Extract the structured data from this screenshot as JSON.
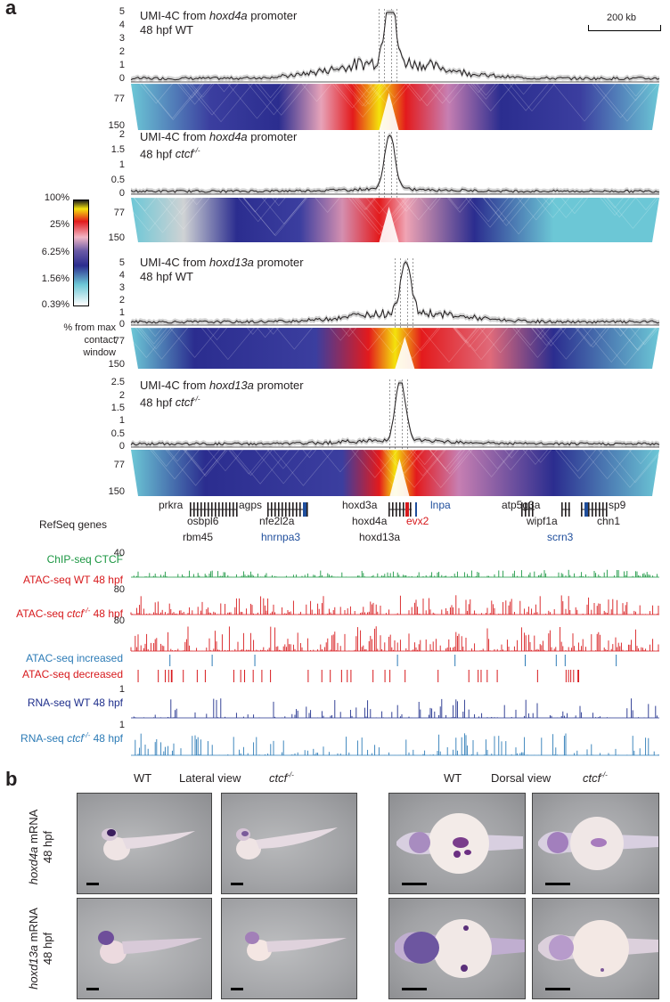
{
  "panel_a": {
    "letter": "a",
    "scale_bar": "200 kb",
    "contact_legend": {
      "stops": [
        "100%",
        "25%",
        "6.25%",
        "1.56%",
        "0.39%"
      ],
      "caption": [
        "% from max",
        "contact",
        "window"
      ]
    },
    "umi_tracks": [
      {
        "title_prefix": "UMI-4C from ",
        "gene": "hoxd4a",
        "title_suffix": " promoter",
        "condition": "48 hpf WT",
        "yticks": [
          "5",
          "4",
          "3",
          "2",
          "1",
          "0"
        ],
        "matrix_ticks": [
          "77",
          "150"
        ]
      },
      {
        "title_prefix": "UMI-4C from ",
        "gene": "hoxd4a",
        "title_suffix": " promoter",
        "condition": "48 hpf ctcf-/-",
        "yticks": [
          "2",
          "1.5",
          "1",
          "0.5",
          "0"
        ],
        "matrix_ticks": [
          "77",
          "150"
        ]
      },
      {
        "title_prefix": "UMI-4C from ",
        "gene": "hoxd13a",
        "title_suffix": " promoter",
        "condition": "48 hpf WT",
        "yticks": [
          "5",
          "4",
          "3",
          "2",
          "1",
          "0"
        ],
        "matrix_ticks": [
          "77",
          "150"
        ]
      },
      {
        "title_prefix": "UMI-4C from ",
        "gene": "hoxd13a",
        "title_suffix": " promoter",
        "condition": "48 hpf ctcf-/-",
        "yticks": [
          "2.5",
          "2",
          "1.5",
          "1",
          "0.5",
          "0"
        ],
        "matrix_ticks": [
          "77",
          "150"
        ]
      }
    ],
    "refseq": {
      "label": "RefSeq genes",
      "genes": [
        {
          "name": "prkra",
          "color": "#231f20"
        },
        {
          "name": "agps",
          "color": "#231f20"
        },
        {
          "name": "hoxd3a",
          "color": "#231f20"
        },
        {
          "name": "lnpa",
          "color": "#1f4e9c"
        },
        {
          "name": "atp5g3a",
          "color": "#231f20"
        },
        {
          "name": "sp9",
          "color": "#231f20"
        },
        {
          "name": "osbpl6",
          "color": "#231f20"
        },
        {
          "name": "nfe2l2a",
          "color": "#231f20"
        },
        {
          "name": "hoxd4a",
          "color": "#231f20"
        },
        {
          "name": "evx2",
          "color": "#d7191c"
        },
        {
          "name": "wipf1a",
          "color": "#231f20"
        },
        {
          "name": "chn1",
          "color": "#231f20"
        },
        {
          "name": "rbm45",
          "color": "#231f20"
        },
        {
          "name": "hnrnpa3",
          "color": "#1f4e9c"
        },
        {
          "name": "hoxd13a",
          "color": "#231f20"
        },
        {
          "name": "scrn3",
          "color": "#1f4e9c"
        }
      ]
    },
    "tracks": [
      {
        "label": "ChIP-seq CTCF",
        "scale": "40",
        "color": "#1a9641"
      },
      {
        "label": "ATAC-seq WT 48 hpf",
        "scale": "80",
        "color": "#d7191c"
      },
      {
        "label_prefix": "ATAC-seq ",
        "label_italic": "ctcf-/-",
        "label_suffix": " 48 hpf",
        "scale": "80",
        "color": "#d7191c"
      },
      {
        "label": "ATAC-seq increased",
        "scale": "",
        "color": "#2c7bb6"
      },
      {
        "label": "ATAC-seq decreased",
        "scale": "",
        "color": "#d7191c"
      },
      {
        "label": "RNA-seq WT 48 hpf",
        "scale": "1",
        "color": "#1f2f8c"
      },
      {
        "label_prefix": "RNA-seq ",
        "label_italic": "ctcf-/-",
        "label_suffix": " 48 hpf",
        "scale": "1",
        "color": "#2c7bb6"
      }
    ]
  },
  "panel_b": {
    "letter": "b",
    "lateral_view": "Lateral view",
    "dorsal_view": "Dorsal view",
    "wt": "WT",
    "ctcf": "ctcf-/-",
    "rows": [
      {
        "gene": "hoxd4a",
        "suffix": " mRNA",
        "stage": "48 hpf"
      },
      {
        "gene": "hoxd13a",
        "suffix": " mRNA",
        "stage": "48 hpf"
      }
    ]
  },
  "colors": {
    "wt_line": "#231f20",
    "matrix_yellow": "#f4e20c",
    "matrix_red": "#e31a1c",
    "matrix_blue": "#2b2d8f",
    "matrix_cyan": "#6cc7d6"
  }
}
